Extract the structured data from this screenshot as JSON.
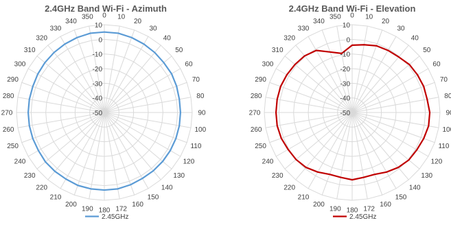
{
  "chart_data": [
    {
      "type": "radar",
      "title": "2.4GHz Band Wi-Fi - Azimuth",
      "angle_labels": [
        "0",
        "10",
        "20",
        "30",
        "40",
        "50",
        "60",
        "70",
        "80",
        "90",
        "100",
        "110",
        "120",
        "130",
        "140",
        "150",
        "160",
        "172",
        "180",
        "190",
        "200",
        "210",
        "220",
        "230",
        "240",
        "250",
        "260",
        "270",
        "280",
        "290",
        "300",
        "310",
        "320",
        "330",
        "340",
        "350"
      ],
      "radial_ticks": [
        10,
        0,
        -10,
        -20,
        -30,
        -40,
        -50
      ],
      "rlim": [
        -50,
        10
      ],
      "series": [
        {
          "name": "2.45GHz",
          "color": "#5b9bd5",
          "values": [
            5,
            5,
            4.5,
            4,
            3.5,
            3,
            3,
            2.5,
            2,
            2,
            2,
            2,
            2,
            2,
            2,
            2,
            2.5,
            3,
            3,
            3,
            3,
            2.5,
            2.5,
            2.5,
            2,
            2,
            2,
            2,
            2,
            2,
            2.5,
            3,
            3.5,
            4,
            4.5,
            5
          ]
        }
      ],
      "legend_position": "bottom"
    },
    {
      "type": "radar",
      "title": "2.4GHz Band Wi-Fi - Elevation",
      "angle_labels": [
        "0",
        "10",
        "20",
        "30",
        "40",
        "50",
        "60",
        "70",
        "80",
        "90",
        "100",
        "110",
        "120",
        "130",
        "140",
        "150",
        "160",
        "172",
        "180",
        "190",
        "200",
        "210",
        "220",
        "230",
        "240",
        "250",
        "260",
        "270",
        "280",
        "290",
        "300",
        "310",
        "320",
        "330",
        "340",
        "350"
      ],
      "radial_ticks": [
        10,
        0,
        -10,
        -20,
        -30,
        -40,
        -50
      ],
      "rlim": [
        -50,
        10
      ],
      "series": [
        {
          "name": "2.45GHz",
          "color": "#c00000",
          "values": [
            -4,
            -3,
            -1.5,
            -1,
            -0.5,
            1,
            1.5,
            2,
            2,
            3,
            3,
            2,
            1,
            0.5,
            -1,
            -3,
            -5,
            -5,
            -4,
            -5,
            -5,
            -3,
            -1,
            0,
            0.5,
            1.5,
            2,
            2,
            2,
            2,
            1.5,
            1,
            0.5,
            -1,
            -6,
            -9
          ]
        }
      ],
      "legend_position": "bottom"
    }
  ]
}
